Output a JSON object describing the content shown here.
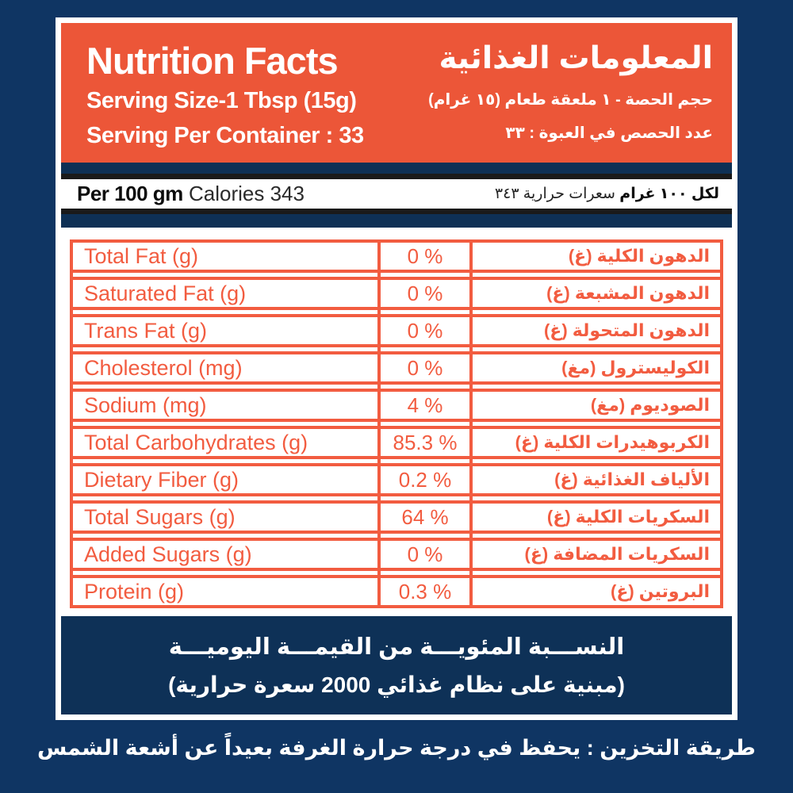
{
  "colors": {
    "page_navy": "#0F3563",
    "strip_navy": "#0E3055",
    "header_orange": "#EC5638",
    "table_orange": "#F25C40",
    "bar_black": "#1A1A1A",
    "white": "#FFFFFF"
  },
  "header": {
    "title_en": "Nutrition Facts",
    "serving_size_en": "Serving Size-1 Tbsp (15g)",
    "serving_container_en": "Serving Per Container : 33",
    "title_ar": "المعلومات الغذائية",
    "serving_size_ar": "حجم الحصة - ١ ملعقة طعام (١٥ غرام)",
    "serving_container_ar": "عدد الحصص في العبوة : ٣٣"
  },
  "calories_band": {
    "per_label_en": "Per 100 gm",
    "calories_en": "Calories 343",
    "per_label_ar": "لكل ١٠٠ غرام",
    "calories_ar": "سعرات حرارية ٣٤٣"
  },
  "table": {
    "rows": [
      {
        "en": "Total Fat (g)",
        "value": "0 %",
        "ar": "الدهون الكلية (غ)"
      },
      {
        "en": "Saturated Fat (g)",
        "value": "0 %",
        "ar": "الدهون المشبعة (غ)"
      },
      {
        "en": "Trans Fat (g)",
        "value": "0 %",
        "ar": "الدهون المتحولة (غ)"
      },
      {
        "en": "Cholesterol (mg)",
        "value": "0 %",
        "ar": "الكوليسترول (مغ)"
      },
      {
        "en": "Sodium (mg)",
        "value": "4 %",
        "ar": "الصوديوم (مغ)"
      },
      {
        "en": "Total Carbohydrates (g)",
        "value": "85.3 %",
        "ar": "الكربوهيدرات الكلية (غ)"
      },
      {
        "en": "Dietary Fiber (g)",
        "value": "0.2 %",
        "ar": "الألياف الغذائية (غ)"
      },
      {
        "en": "Total Sugars (g)",
        "value": "64 %",
        "ar": "السكريات الكلية (غ)"
      },
      {
        "en": "Added Sugars (g)",
        "value": "0 %",
        "ar": "السكريات المضافة (غ)"
      },
      {
        "en": "Protein (g)",
        "value": "0.3 %",
        "ar": "البروتين (غ)"
      }
    ]
  },
  "daily_value_footer": {
    "line1_ar": "النســـبة المئويـــة من القيمـــة اليوميـــة",
    "line2_ar": "(مبنية على نظام غذائي 2000 سعرة حرارية)"
  },
  "storage": {
    "text_ar": "طريقة التخزين : يحفظ في درجة حرارة الغرفة  بعيداً عن أشعة الشمس"
  }
}
